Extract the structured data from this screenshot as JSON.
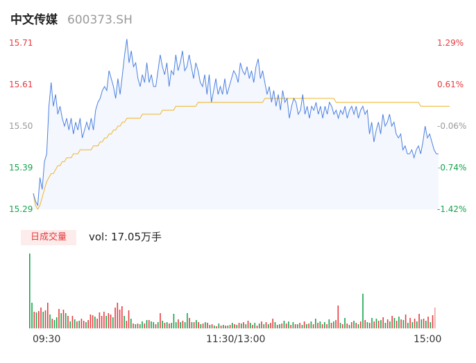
{
  "header": {
    "name": "中文传媒",
    "code": "600373.SH"
  },
  "price_labels": [
    "15.71",
    "15.61",
    "15.50",
    "15.39",
    "15.29"
  ],
  "pct_labels": [
    "1.29%",
    "0.61%",
    "-0.06%",
    "-0.74%",
    "-1.42%"
  ],
  "volume": {
    "tag": "日成交量",
    "text": "vol: 17.05万手"
  },
  "time_labels": [
    "09:30",
    "11:30/13:00",
    "15:00"
  ],
  "colors": {
    "price_line": "#4a7fe0",
    "avg_line": "#f0b429",
    "up": "#e8383d",
    "down": "#13a34a",
    "flat": "#999999"
  },
  "chart_data": [
    {
      "type": "line",
      "title": "",
      "x_range": [
        "09:30",
        "15:00"
      ],
      "ylim": [
        15.29,
        15.71
      ],
      "pct_range": [
        -1.42,
        1.29
      ],
      "series": [
        {
          "values": [
            15.33,
            15.31,
            15.3,
            15.37,
            15.34,
            15.41,
            15.43,
            15.55,
            15.61,
            15.55,
            15.58,
            15.53,
            15.55,
            15.52,
            15.5,
            15.52,
            15.49,
            15.52,
            15.48,
            15.51,
            15.49,
            15.52,
            15.47,
            15.49,
            15.51,
            15.49,
            15.52,
            15.49,
            15.54,
            15.56,
            15.57,
            15.59,
            15.6,
            15.59,
            15.64,
            15.62,
            15.6,
            15.57,
            15.62,
            15.58,
            15.63,
            15.68,
            15.72,
            15.66,
            15.69,
            15.65,
            15.66,
            15.62,
            15.6,
            15.63,
            15.61,
            15.66,
            15.61,
            15.63,
            15.6,
            15.6,
            15.64,
            15.68,
            15.65,
            15.63,
            15.66,
            15.6,
            15.64,
            15.63,
            15.68,
            15.64,
            15.66,
            15.69,
            15.64,
            15.65,
            15.68,
            15.65,
            15.62,
            15.66,
            15.64,
            15.61,
            15.6,
            15.63,
            15.58,
            15.63,
            15.56,
            15.59,
            15.62,
            15.58,
            15.6,
            15.58,
            15.62,
            15.58,
            15.6,
            15.62,
            15.64,
            15.63,
            15.61,
            15.66,
            15.64,
            15.63,
            15.65,
            15.62,
            15.64,
            15.61,
            15.65,
            15.67,
            15.62,
            15.64,
            15.61,
            15.58,
            15.6,
            15.56,
            15.59,
            15.55,
            15.58,
            15.54,
            15.59,
            15.56,
            15.57,
            15.52,
            15.55,
            15.57,
            15.56,
            15.53,
            15.54,
            15.58,
            15.53,
            15.55,
            15.52,
            15.55,
            15.54,
            15.56,
            15.53,
            15.55,
            15.52,
            15.55,
            15.53,
            15.56,
            15.55,
            15.53,
            15.54,
            15.52,
            15.54,
            15.53,
            15.55,
            15.52,
            15.54,
            15.55,
            15.53,
            15.55,
            15.52,
            15.54,
            15.55,
            15.53,
            15.54,
            15.48,
            15.51,
            15.46,
            15.49,
            15.51,
            15.48,
            15.53,
            15.5,
            15.51,
            15.53,
            15.5,
            15.51,
            15.48,
            15.47,
            15.48,
            15.44,
            15.45,
            15.43,
            15.43,
            15.44,
            15.42,
            15.44,
            15.45,
            15.43,
            15.46,
            15.5,
            15.47,
            15.48,
            15.46,
            15.44,
            15.43,
            15.43
          ]
        },
        {
          "values": [
            15.33,
            15.3,
            15.29,
            15.3,
            15.32,
            15.34,
            15.36,
            15.37,
            15.38,
            15.38,
            15.39,
            15.4,
            15.4,
            15.41,
            15.41,
            15.42,
            15.42,
            15.42,
            15.43,
            15.43,
            15.43,
            15.44,
            15.44,
            15.44,
            15.44,
            15.44,
            15.44,
            15.45,
            15.45,
            15.45,
            15.46,
            15.46,
            15.47,
            15.47,
            15.48,
            15.48,
            15.49,
            15.49,
            15.5,
            15.5,
            15.51,
            15.51,
            15.52,
            15.52,
            15.52,
            15.52,
            15.52,
            15.52,
            15.52,
            15.53,
            15.53,
            15.53,
            15.53,
            15.53,
            15.53,
            15.53,
            15.53,
            15.53,
            15.54,
            15.54,
            15.54,
            15.54,
            15.54,
            15.54,
            15.55,
            15.55,
            15.55,
            15.55,
            15.55,
            15.55,
            15.55,
            15.55,
            15.55,
            15.55,
            15.56,
            15.56,
            15.56,
            15.56,
            15.56,
            15.56,
            15.56,
            15.56,
            15.56,
            15.56,
            15.56,
            15.56,
            15.56,
            15.56,
            15.56,
            15.56,
            15.56,
            15.56,
            15.56,
            15.56,
            15.56,
            15.56,
            15.56,
            15.56,
            15.56,
            15.56,
            15.56,
            15.56,
            15.56,
            15.56,
            15.57,
            15.57,
            15.57,
            15.57,
            15.57,
            15.57,
            15.57,
            15.57,
            15.57,
            15.57,
            15.57,
            15.57,
            15.57,
            15.57,
            15.57,
            15.57,
            15.57,
            15.57,
            15.57,
            15.57,
            15.57,
            15.57,
            15.57,
            15.57,
            15.57,
            15.57,
            15.57,
            15.57,
            15.57,
            15.57,
            15.57,
            15.57,
            15.56,
            15.56,
            15.56,
            15.56,
            15.56,
            15.56,
            15.56,
            15.56,
            15.56,
            15.56,
            15.56,
            15.56,
            15.56,
            15.56,
            15.56,
            15.56,
            15.56,
            15.56,
            15.56,
            15.56,
            15.56,
            15.56,
            15.56,
            15.56,
            15.56,
            15.56,
            15.56,
            15.56,
            15.56,
            15.56,
            15.56,
            15.56,
            15.56,
            15.56,
            15.56,
            15.56,
            15.56,
            15.56,
            15.55,
            15.55,
            15.55,
            15.55,
            15.55,
            15.55,
            15.55,
            15.55,
            15.55,
            15.55,
            15.55,
            15.55,
            15.55,
            15.55
          ]
        }
      ]
    },
    {
      "type": "bar",
      "title": "",
      "x_range": [
        "09:30",
        "15:00"
      ],
      "ylim": [
        0,
        108
      ],
      "values": [
        108,
        37,
        24,
        23,
        25,
        30,
        24,
        26,
        37,
        20,
        14,
        12,
        16,
        28,
        22,
        27,
        22,
        18,
        10,
        18,
        13,
        10,
        11,
        14,
        11,
        9,
        12,
        20,
        19,
        17,
        14,
        23,
        18,
        24,
        18,
        22,
        20,
        16,
        30,
        37,
        27,
        32,
        18,
        11,
        26,
        14,
        7,
        6,
        7,
        6,
        10,
        7,
        12,
        12,
        10,
        9,
        6,
        9,
        22,
        11,
        8,
        9,
        7,
        8,
        21,
        9,
        13,
        9,
        11,
        9,
        22,
        15,
        9,
        9,
        12,
        9,
        6,
        7,
        9,
        8,
        5,
        6,
        4,
        3,
        7,
        4,
        5,
        4,
        4,
        5,
        8,
        6,
        5,
        8,
        7,
        9,
        6,
        11,
        8,
        5,
        8,
        4,
        7,
        10,
        6,
        9,
        6,
        8,
        14,
        9,
        5,
        6,
        7,
        11,
        7,
        10,
        5,
        9,
        6,
        6,
        8,
        5,
        10,
        6,
        7,
        10,
        6,
        14,
        8,
        10,
        6,
        9,
        6,
        13,
        8,
        10,
        12,
        33,
        8,
        6,
        15,
        7,
        5,
        9,
        11,
        8,
        6,
        10,
        50,
        12,
        9,
        8,
        15,
        10,
        14,
        11,
        12,
        16,
        8,
        13,
        10,
        18,
        15,
        11,
        17,
        13,
        12,
        20,
        8,
        15,
        9,
        14,
        10,
        21,
        13,
        14,
        11,
        17,
        9,
        19,
        30
      ],
      "dirs": [
        "d",
        "d",
        "u",
        "d",
        "u",
        "u",
        "d",
        "u",
        "u",
        "d",
        "u",
        "d",
        "d",
        "u",
        "d",
        "u",
        "d",
        "u",
        "d",
        "u",
        "d",
        "u",
        "d",
        "u",
        "u",
        "d",
        "u",
        "u",
        "u",
        "d",
        "u",
        "u",
        "u",
        "u",
        "d",
        "u",
        "u",
        "d",
        "u",
        "u",
        "u",
        "u",
        "d",
        "u",
        "u",
        "d",
        "u",
        "d",
        "u",
        "d",
        "d",
        "u",
        "d",
        "u",
        "d",
        "d",
        "u",
        "d",
        "u",
        "d",
        "u",
        "d",
        "u",
        "d",
        "d",
        "d",
        "u",
        "d",
        "u",
        "d",
        "d",
        "u",
        "d",
        "u",
        "d",
        "u",
        "d",
        "u",
        "d",
        "u",
        "d",
        "u",
        "d",
        "u",
        "d",
        "u",
        "d",
        "u",
        "d",
        "u",
        "d",
        "u",
        "d",
        "u",
        "d",
        "u",
        "d",
        "u",
        "d",
        "u",
        "d",
        "u",
        "d",
        "u",
        "d",
        "u",
        "d",
        "u",
        "u",
        "d",
        "u",
        "d",
        "u",
        "d",
        "u",
        "d",
        "u",
        "d",
        "u",
        "d",
        "u",
        "d",
        "u",
        "d",
        "u",
        "d",
        "u",
        "d",
        "u",
        "d",
        "u",
        "d",
        "u",
        "d",
        "u",
        "d",
        "u",
        "u",
        "d",
        "u",
        "d",
        "u",
        "d",
        "u",
        "d",
        "u",
        "d",
        "u",
        "d",
        "u",
        "d",
        "u",
        "d",
        "u",
        "d",
        "u",
        "d",
        "u",
        "d",
        "u",
        "d",
        "u",
        "d",
        "u",
        "d",
        "u",
        "d",
        "u",
        "d",
        "u",
        "d",
        "u",
        "d",
        "u",
        "d",
        "u",
        "d",
        "u",
        "d",
        "u",
        "d",
        "u",
        "d",
        "u"
      ]
    }
  ]
}
